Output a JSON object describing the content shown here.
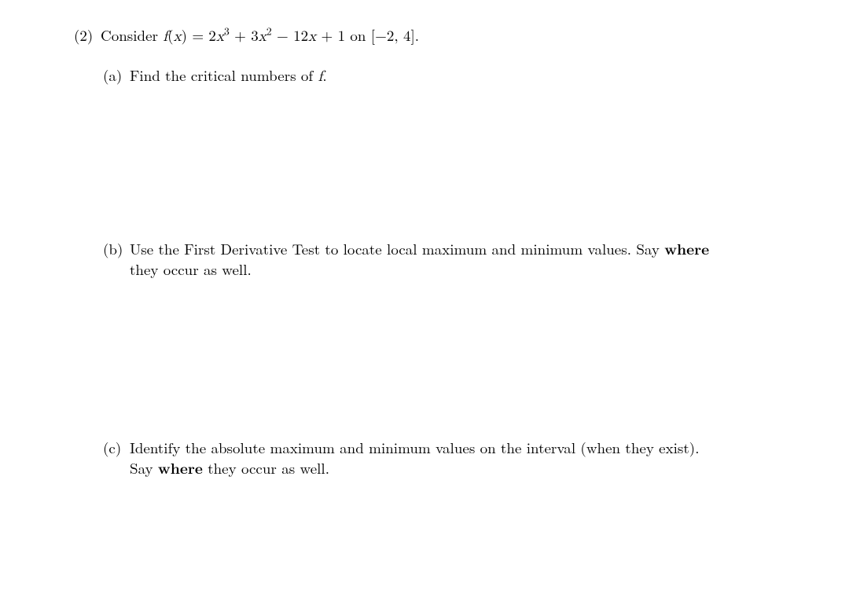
{
  "problem": {
    "number_label": "(2)",
    "lead": "Consider ",
    "fn_name": "f",
    "open_paren": "(",
    "var": "x",
    "close_paren_eq": ") = 2",
    "x1": "x",
    "exp3": "3",
    "plus3": " + 3",
    "x2": "x",
    "exp2": "2",
    "minus12": " − 12",
    "x3": "x",
    "plus1_on": " + 1 on [−2, 4]."
  },
  "parts": {
    "a": {
      "label": "(a)",
      "text_pre": "Find the critical numbers of ",
      "f": "f",
      "text_post": "."
    },
    "b": {
      "label": "(b)",
      "line1_pre": "Use the First Derivative Test to locate local maximum and minimum values. Say ",
      "where": "where",
      "line2": "they occur as well."
    },
    "c": {
      "label": "(c)",
      "line1": "Identify the absolute maximum and minimum values on the interval (when they exist).",
      "line2_pre": "Say ",
      "where": "where",
      "line2_post": " they occur as well."
    }
  },
  "style": {
    "font_size_pt": 14,
    "text_color": "#000000",
    "background_color": "#ffffff"
  }
}
